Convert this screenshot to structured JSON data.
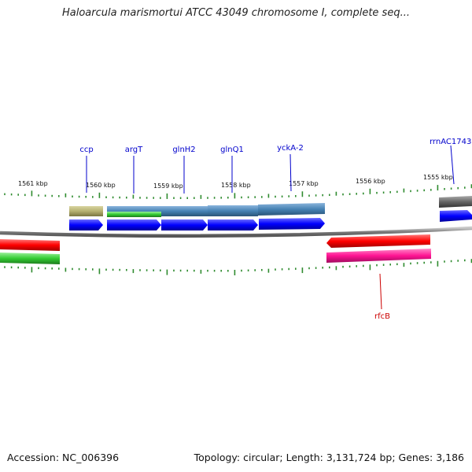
{
  "title": "Haloarcula marismortui ATCC 43049 chromosome I, complete seq...",
  "footer": {
    "accession": "Accession: NC_006396",
    "summary": "Topology: circular; Length: 3,131,724 bp; Genes: 3,186"
  },
  "ruler": {
    "kbp_labels": [
      "1561 kbp",
      "1560 kbp",
      "1559 kbp",
      "1558 kbp",
      "1557 kbp",
      "1556 kbp",
      "1555 kbp"
    ]
  },
  "genes": [
    {
      "name": "ccp",
      "strand": "forward",
      "color": "#0000ff"
    },
    {
      "name": "argT",
      "strand": "forward",
      "color": "#0000ff"
    },
    {
      "name": "glnH2",
      "strand": "forward",
      "color": "#0000ff"
    },
    {
      "name": "glnQ1",
      "strand": "forward",
      "color": "#0000ff"
    },
    {
      "name": "yckA-2",
      "strand": "forward",
      "color": "#0000ff"
    },
    {
      "name": "rrnAC1743",
      "strand": "forward",
      "color": "#0000ff"
    },
    {
      "name": "rfcB",
      "strand": "reverse",
      "color": "#ff0000"
    }
  ],
  "colors": {
    "backbone": "#808080",
    "forward_gene_label": "#0000cc",
    "reverse_gene_label": "#cc0000",
    "tick": "#2e8b2e",
    "cog_olive": "#b5b070",
    "cog_steelblue": "#4682b4",
    "cog_green": "#33cc33",
    "cog_gray": "#666666",
    "cog_magenta": "#ff1493"
  }
}
